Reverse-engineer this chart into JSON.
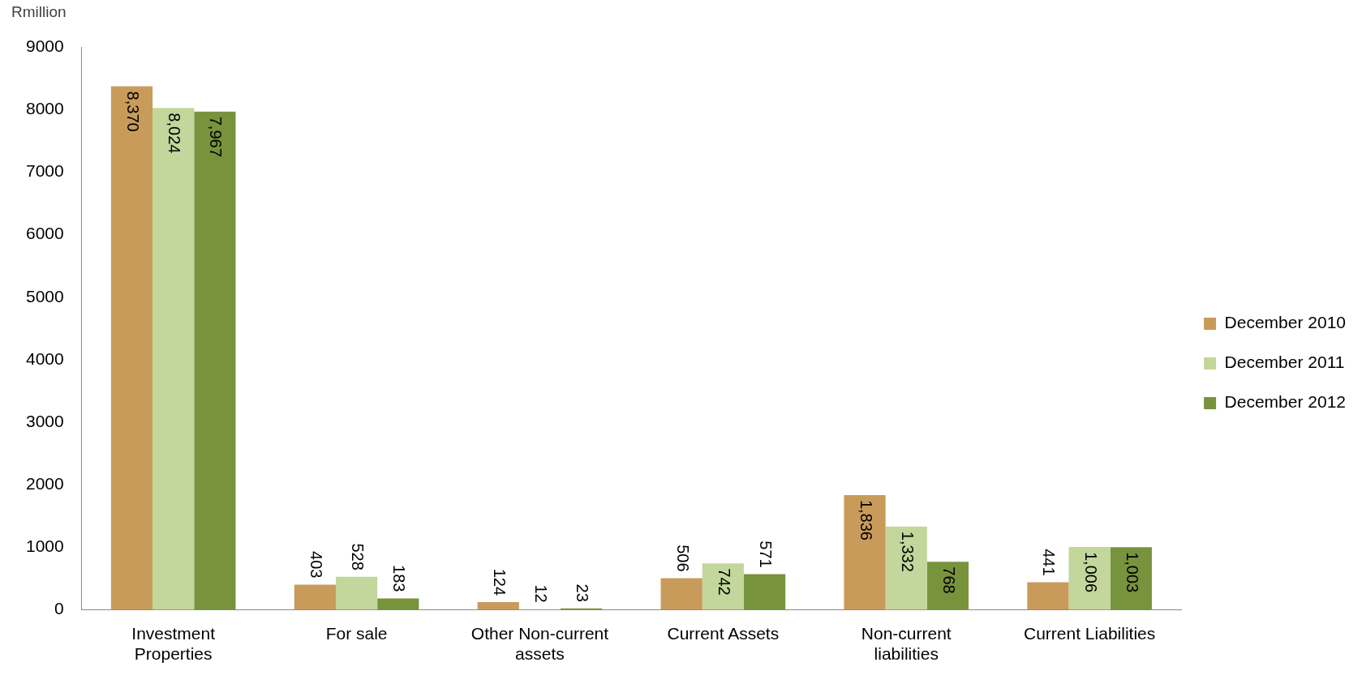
{
  "chart_data": {
    "type": "bar",
    "ylabel": "Rmillion",
    "categories": [
      "Investment Properties",
      "For sale",
      "Other Non-current assets",
      "Current Assets",
      "Non-current liabilities",
      "Current Liabilities"
    ],
    "series": [
      {
        "name": "December 2010",
        "color": "#c89b5a",
        "values": [
          8370,
          403,
          124,
          506,
          1836,
          441
        ],
        "value_labels": [
          "8,370",
          "403",
          "124",
          "506",
          "1,836",
          "441"
        ]
      },
      {
        "name": "December 2011",
        "color": "#c3d69b",
        "values": [
          8024,
          528,
          12,
          742,
          1332,
          1006
        ],
        "value_labels": [
          "8,024",
          "528",
          "12",
          "742",
          "1,332",
          "1,006"
        ]
      },
      {
        "name": "December 2012",
        "color": "#77933c",
        "values": [
          7967,
          183,
          23,
          571,
          768,
          1003
        ],
        "value_labels": [
          "7,967",
          "183",
          "23",
          "571",
          "768",
          "1,003"
        ]
      }
    ],
    "ylim": [
      0,
      9000
    ],
    "yticks": [
      0,
      1000,
      2000,
      3000,
      4000,
      5000,
      6000,
      7000,
      8000,
      9000
    ],
    "grid": false,
    "legend": "right"
  }
}
